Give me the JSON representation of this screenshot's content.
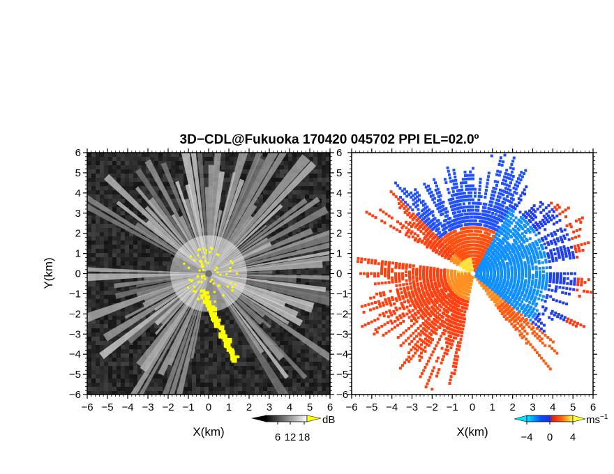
{
  "chart_data": [
    {
      "type": "heatmap",
      "panel": "left",
      "title": "3D−CDL@Fukuoka 170420 045702 PPI EL=02.0º",
      "xlabel": "X(km)",
      "ylabel": "Y(km)",
      "xlim": [
        -6,
        6
      ],
      "ylim": [
        -6,
        6
      ],
      "xticks": [
        -6,
        -5,
        -4,
        -3,
        -2,
        -1,
        0,
        1,
        2,
        3,
        4,
        5,
        6
      ],
      "yticks": [
        -6,
        -5,
        -4,
        -3,
        -2,
        -1,
        0,
        1,
        2,
        3,
        4,
        5,
        6
      ],
      "variable": "SNR",
      "colorbar": {
        "unit": "dB",
        "ticks": [
          6,
          12,
          18
        ],
        "colormap": "grayscale"
      },
      "flag_color": "#ffff00"
    },
    {
      "type": "heatmap",
      "panel": "right",
      "xlabel": "X(km)",
      "xlim": [
        -6,
        6
      ],
      "ylim": [
        -6,
        6
      ],
      "xticks": [
        -6,
        -5,
        -4,
        -3,
        -2,
        -1,
        0,
        1,
        2,
        3,
        4,
        5,
        6
      ],
      "yticks": [
        -6,
        -5,
        -4,
        -3,
        -2,
        -1,
        0,
        1,
        2,
        3,
        4,
        5,
        6
      ],
      "variable": "Doppler velocity",
      "colorbar": {
        "unit": "ms⁻¹",
        "ticks": [
          -4,
          0,
          4
        ],
        "colormap": "cyan-blue-red-orange-yellow"
      }
    }
  ]
}
